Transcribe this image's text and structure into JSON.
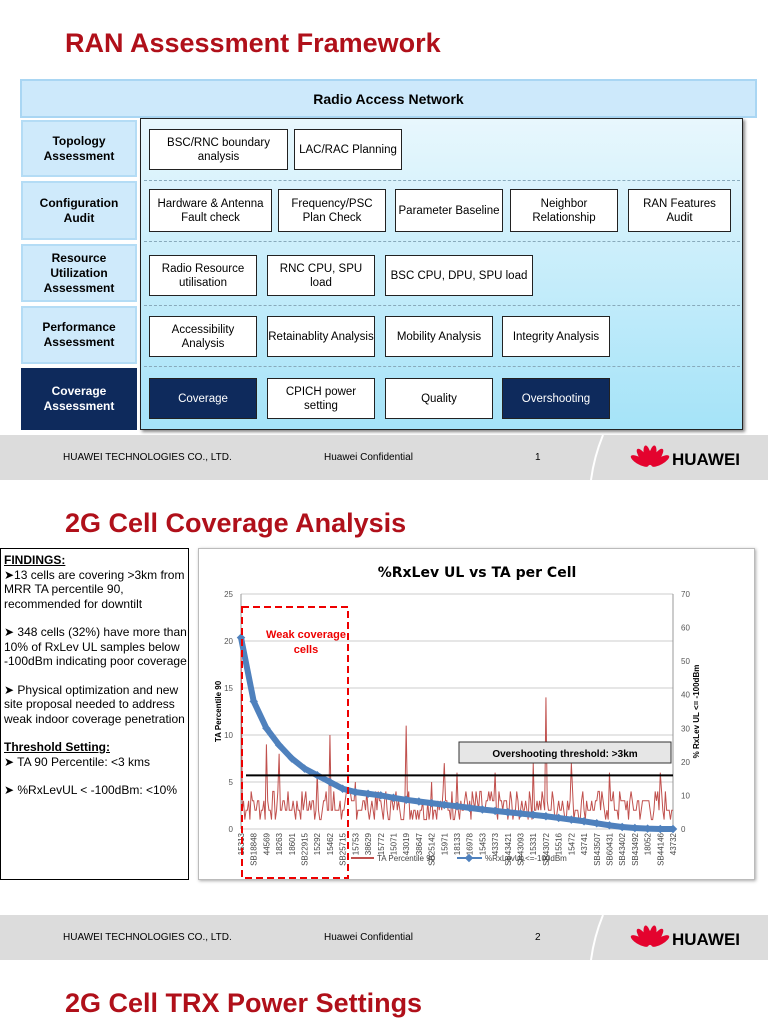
{
  "slide1": {
    "title": "RAN Assessment Framework",
    "header": "Radio Access Network",
    "rows": [
      {
        "label": "Topology Assessment",
        "items": [
          "BSC/RNC boundary analysis",
          "LAC/RAC Planning"
        ]
      },
      {
        "label": "Configuration Audit",
        "items": [
          "Hardware & Antenna Fault check",
          "Frequency/PSC Plan Check",
          "Parameter Baseline",
          "Neighbor Relationship",
          "RAN Features Audit"
        ]
      },
      {
        "label": "Resource Utilization Assessment",
        "items": [
          "Radio Resource utilisation",
          "RNC CPU, SPU load",
          "BSC CPU, DPU, SPU load"
        ]
      },
      {
        "label": "Performance Assessment",
        "items": [
          "Accessibility Analysis",
          "Retainablity Analysis",
          "Mobility Analysis",
          "Integrity Analysis"
        ]
      },
      {
        "label": "Coverage Assessment",
        "items": [
          "Coverage",
          "CPICH power setting",
          "Quality",
          "Overshooting"
        ]
      }
    ],
    "footer": {
      "company": "HUAWEI TECHNOLOGIES CO., LTD.",
      "confidential": "Huawei Confidential",
      "page": "1",
      "logo": "HUAWEI"
    }
  },
  "slide2": {
    "title": "2G Cell Coverage Analysis",
    "findings": {
      "heading": "FINDINGS:",
      "points": [
        "➤13 cells are covering >3km from MRR TA percentile 90, recommended for downtilt",
        "➤ 348 cells (32%) have more than 10% of RxLev UL samples below -100dBm indicating poor coverage",
        "➤ Physical optimization and new site proposal needed to address weak indoor coverage penetration"
      ],
      "threshold_heading": "Threshold Setting:",
      "thresholds": [
        "➤ TA 90 Percentile: <3 kms",
        "➤ %RxLevUL < -100dBm: <10%"
      ]
    },
    "footer": {
      "company": "HUAWEI TECHNOLOGIES CO., LTD.",
      "confidential": "Huawei Confidential",
      "page": "2",
      "logo": "HUAWEI"
    }
  },
  "slide3": {
    "title": "2G Cell TRX Power Settings"
  },
  "chart_data": {
    "type": "line",
    "title": "%RxLev UL vs TA per Cell",
    "ylabel": "TA Percentile 90",
    "y2label": "% RxLev UL <= -100dBm",
    "ylim": [
      0,
      25
    ],
    "yticks": [
      0,
      5,
      10,
      15,
      20,
      25
    ],
    "y2lim": [
      0,
      70
    ],
    "y2ticks": [
      0,
      10,
      20,
      30,
      40,
      50,
      60,
      70
    ],
    "grid": true,
    "legend": "bottom",
    "categories": [
      "15313",
      "SB18848",
      "44569",
      "18263",
      "18601",
      "SB22915",
      "15292",
      "15462",
      "SB25715",
      "15753",
      "38629",
      "15772",
      "15071",
      "43019",
      "38647",
      "SB25142",
      "15971",
      "18133",
      "16978",
      "15453",
      "43373",
      "SB43421",
      "SB43093",
      "15331",
      "SB43072",
      "15516",
      "15472",
      "43741",
      "SB43507",
      "SB60431",
      "SB43402",
      "SB43492",
      "18052",
      "SB44146",
      "43732"
    ],
    "series": [
      {
        "name": "TA Percentile 90",
        "axis": "left",
        "color": "#c0504d",
        "values": [
          20,
          3,
          9,
          8,
          2,
          3,
          6,
          10,
          2,
          5,
          2,
          3,
          2,
          11,
          1,
          5,
          7,
          6,
          3,
          2,
          6,
          1,
          2,
          7,
          14,
          3,
          7,
          2,
          3,
          6,
          3,
          2,
          3,
          6,
          2
        ]
      },
      {
        "name": "%RxLevUL<=-100dBm",
        "axis": "right",
        "color": "#4f81bd",
        "values": [
          57,
          38,
          30,
          25,
          21,
          18,
          16,
          14,
          12,
          11,
          10.5,
          10,
          9.3,
          8.7,
          8.2,
          7.7,
          7.2,
          6.8,
          6.3,
          5.8,
          5.4,
          5,
          4.6,
          4.2,
          3.8,
          3.3,
          2.8,
          2.3,
          1.7,
          1.1,
          0.6,
          0.3,
          0.1,
          0,
          0
        ]
      }
    ],
    "threshold": {
      "value": 5.7,
      "axis": "left",
      "label": "Overshooting threshold: >3km"
    },
    "annotation": "Weak coverage cells"
  }
}
